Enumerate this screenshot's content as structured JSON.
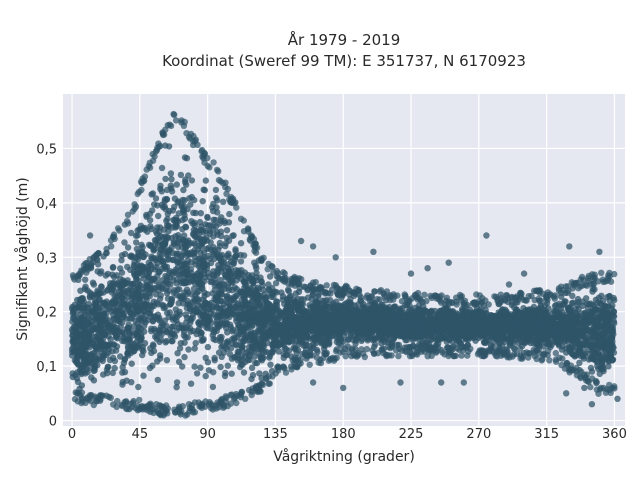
{
  "chart_data": {
    "type": "scatter",
    "title_line1": "År 1979 - 2019",
    "title_line2": "Koordinat (Sweref 99 TM): E 351737, N 6170923",
    "xlabel": "Vågriktning (grader)",
    "ylabel": "Signifikant våghöjd (m)",
    "xlim": [
      -6,
      367
    ],
    "ylim": [
      -0.01,
      0.6
    ],
    "x_ticks": [
      0,
      45,
      90,
      135,
      180,
      225,
      270,
      315,
      360
    ],
    "y_ticks": [
      0,
      0.1,
      0.2,
      0.3,
      0.4,
      0.5
    ],
    "y_tick_labels": [
      "0",
      "0,1",
      "0,2",
      "0,3",
      "0,4",
      "0,5"
    ],
    "grid": true,
    "marker_color": "#2f5468",
    "background_color": "#e5e8f0",
    "envelope": [
      {
        "x": 0,
        "lo": 0.05,
        "hi": 0.26
      },
      {
        "x": 10,
        "lo": 0.04,
        "hi": 0.28
      },
      {
        "x": 25,
        "lo": 0.04,
        "hi": 0.32
      },
      {
        "x": 40,
        "lo": 0.03,
        "hi": 0.38
      },
      {
        "x": 50,
        "lo": 0.03,
        "hi": 0.46
      },
      {
        "x": 60,
        "lo": 0.02,
        "hi": 0.52
      },
      {
        "x": 68,
        "lo": 0.02,
        "hi": 0.56
      },
      {
        "x": 75,
        "lo": 0.02,
        "hi": 0.54
      },
      {
        "x": 85,
        "lo": 0.03,
        "hi": 0.49
      },
      {
        "x": 95,
        "lo": 0.03,
        "hi": 0.46
      },
      {
        "x": 105,
        "lo": 0.04,
        "hi": 0.41
      },
      {
        "x": 115,
        "lo": 0.05,
        "hi": 0.35
      },
      {
        "x": 125,
        "lo": 0.06,
        "hi": 0.3
      },
      {
        "x": 135,
        "lo": 0.09,
        "hi": 0.27
      },
      {
        "x": 150,
        "lo": 0.11,
        "hi": 0.25
      },
      {
        "x": 170,
        "lo": 0.12,
        "hi": 0.24
      },
      {
        "x": 200,
        "lo": 0.13,
        "hi": 0.23
      },
      {
        "x": 240,
        "lo": 0.13,
        "hi": 0.22
      },
      {
        "x": 280,
        "lo": 0.13,
        "hi": 0.22
      },
      {
        "x": 320,
        "lo": 0.12,
        "hi": 0.23
      },
      {
        "x": 335,
        "lo": 0.09,
        "hi": 0.25
      },
      {
        "x": 350,
        "lo": 0.06,
        "hi": 0.26
      },
      {
        "x": 360,
        "lo": 0.06,
        "hi": 0.26
      }
    ],
    "outliers": [
      {
        "x": 12,
        "y": 0.34
      },
      {
        "x": 35,
        "y": 0.36
      },
      {
        "x": 152,
        "y": 0.33
      },
      {
        "x": 160,
        "y": 0.32
      },
      {
        "x": 175,
        "y": 0.3
      },
      {
        "x": 200,
        "y": 0.31
      },
      {
        "x": 225,
        "y": 0.27
      },
      {
        "x": 236,
        "y": 0.28
      },
      {
        "x": 250,
        "y": 0.29
      },
      {
        "x": 275,
        "y": 0.34
      },
      {
        "x": 290,
        "y": 0.25
      },
      {
        "x": 300,
        "y": 0.27
      },
      {
        "x": 330,
        "y": 0.32
      },
      {
        "x": 350,
        "y": 0.31
      },
      {
        "x": 362,
        "y": 0.04
      },
      {
        "x": 345,
        "y": 0.03
      },
      {
        "x": 218,
        "y": 0.07
      },
      {
        "x": 245,
        "y": 0.07
      },
      {
        "x": 260,
        "y": 0.07
      },
      {
        "x": 180,
        "y": 0.06
      },
      {
        "x": 160,
        "y": 0.07
      },
      {
        "x": 340,
        "y": 0.06
      },
      {
        "x": 328,
        "y": 0.05
      }
    ]
  }
}
